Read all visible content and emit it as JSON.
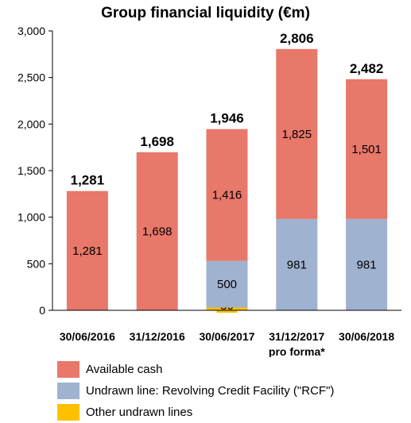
{
  "chart_data": {
    "type": "bar",
    "stacked": true,
    "title": "Group financial liquidity (€m)",
    "categories": [
      "30/06/2016",
      "31/12/2016",
      "30/06/2017",
      "31/12/2017\npro forma*",
      "30/06/2018"
    ],
    "series": [
      {
        "name": "Other undrawn lines",
        "color": "#ffc000",
        "values": [
          0,
          0,
          30,
          0,
          0
        ],
        "labels": [
          "",
          "",
          "30",
          "",
          ""
        ]
      },
      {
        "name": "Undrawn line: Revolving Credit Facility (\"RCF\")",
        "color": "#9fb2d0",
        "values": [
          0,
          0,
          500,
          981,
          981
        ],
        "labels": [
          "",
          "",
          "500",
          "981",
          "981"
        ]
      },
      {
        "name": "Available cash",
        "color": "#e8786a",
        "values": [
          1281,
          1698,
          1416,
          1825,
          1501
        ],
        "labels": [
          "1,281",
          "1,698",
          "1,416",
          "1,825",
          "1,501"
        ]
      }
    ],
    "totals": [
      "1,281",
      "1,698",
      "1,946",
      "2,806",
      "2,482"
    ],
    "ylim": [
      0,
      3000
    ],
    "yticks": [
      0,
      500,
      1000,
      1500,
      2000,
      2500,
      3000
    ],
    "ytick_labels": [
      "0",
      "500",
      "1,000",
      "1,500",
      "2,000",
      "2,500",
      "3,000"
    ],
    "grid": false,
    "legend_position": "bottom-left",
    "legend_order": [
      "Available cash",
      "Undrawn line: Revolving Credit Facility (\"RCF\")",
      "Other undrawn lines"
    ]
  }
}
